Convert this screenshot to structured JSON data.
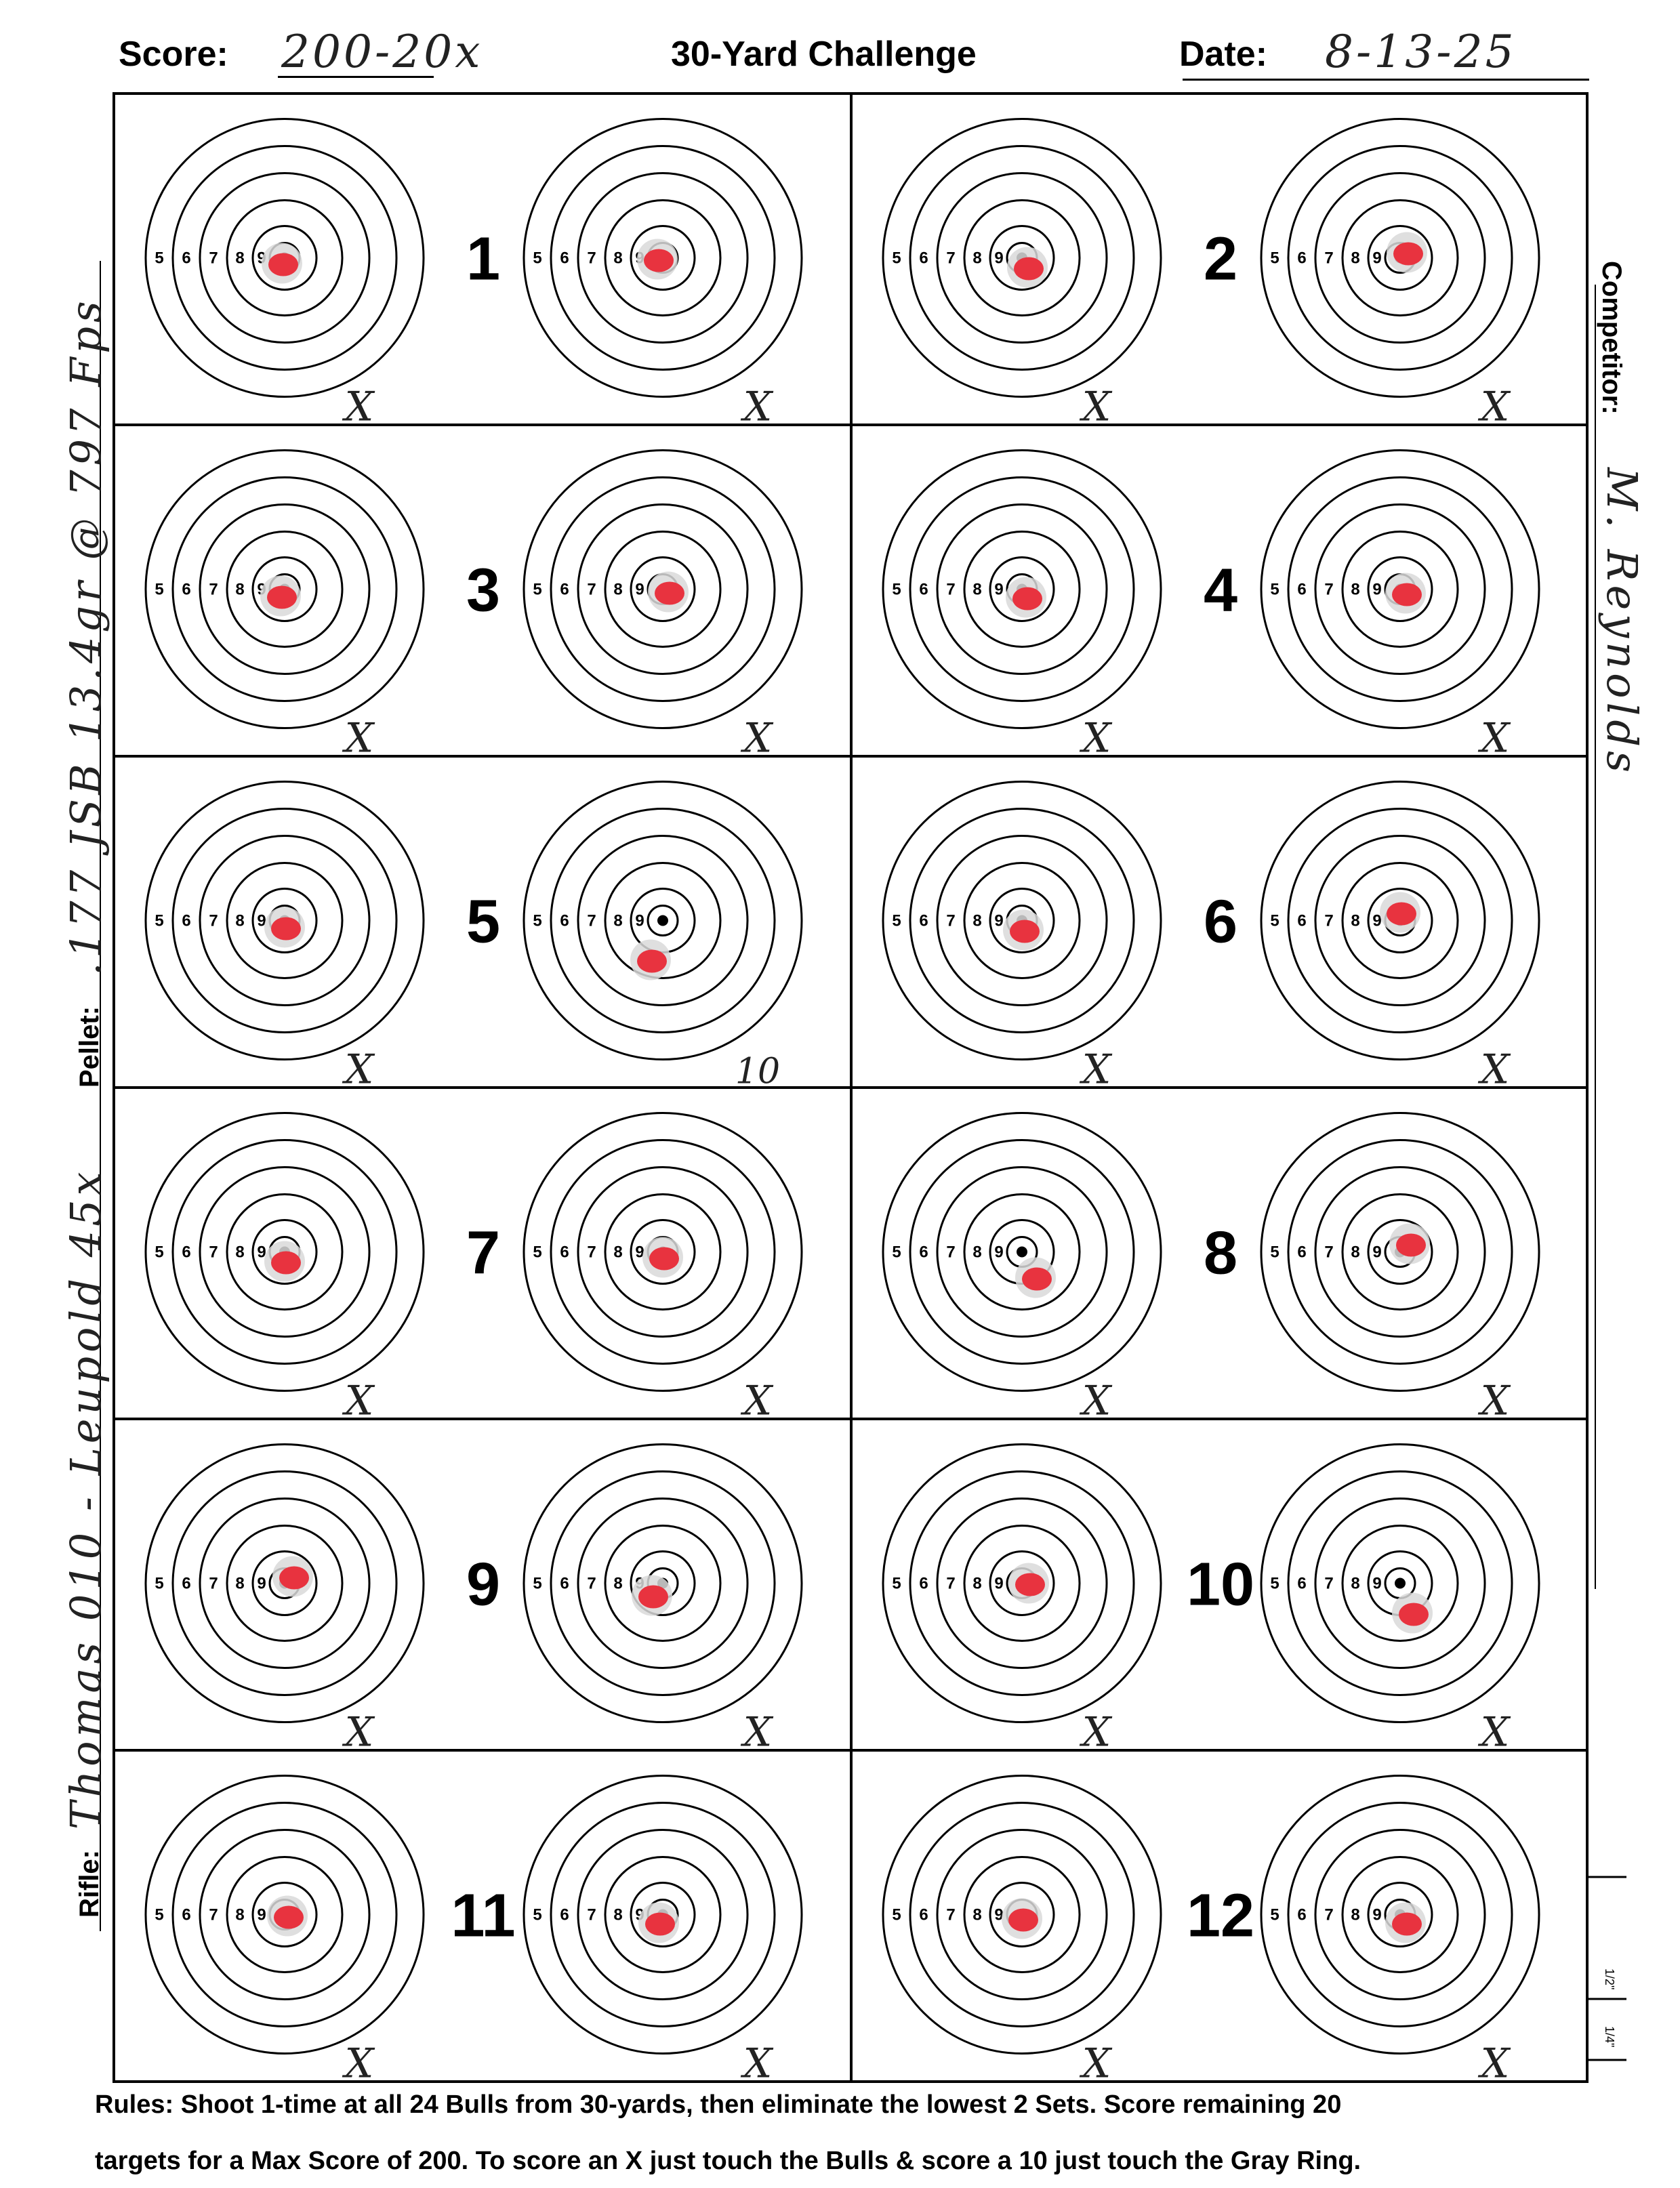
{
  "header": {
    "score_label": "Score:",
    "score_value": "200-20x",
    "title": "30-Yard Challenge",
    "date_label": "Date:",
    "date_value": "8-13-25"
  },
  "side_labels": {
    "competitor_label": "Competitor:",
    "competitor_value": "M. Reynolds",
    "pellet_label": "Pellet:",
    "pellet_value": ".177 JSB 13.4gr @ 797 Fps",
    "rifle_label": "Rifle:",
    "rifle_value": "Thomas 010 - Leupold 45x"
  },
  "ring_numbers": [
    "5",
    "6",
    "7",
    "8",
    "9"
  ],
  "sets": [
    {
      "number": "1",
      "marks": [
        "X",
        "X"
      ]
    },
    {
      "number": "2",
      "marks": [
        "X",
        "X"
      ]
    },
    {
      "number": "3",
      "marks": [
        "X",
        "X"
      ]
    },
    {
      "number": "4",
      "marks": [
        "X",
        "X"
      ]
    },
    {
      "number": "5",
      "marks": [
        "X",
        "10"
      ]
    },
    {
      "number": "6",
      "marks": [
        "X",
        "X"
      ]
    },
    {
      "number": "7",
      "marks": [
        "X",
        "X"
      ]
    },
    {
      "number": "8",
      "marks": [
        "X",
        "X"
      ]
    },
    {
      "number": "9",
      "marks": [
        "X",
        "X"
      ]
    },
    {
      "number": "10",
      "marks": [
        "X",
        "X"
      ]
    },
    {
      "number": "11",
      "marks": [
        "X",
        "X"
      ]
    },
    {
      "number": "12",
      "marks": [
        "X",
        "X"
      ]
    }
  ],
  "scale_labels": [
    "1/2\"",
    "1/4\""
  ],
  "rules": {
    "line1": "Rules: Shoot 1-time at all 24 Bulls from 30-yards, then eliminate the lowest 2 Sets. Score remaining 20",
    "line2": "targets for a Max Score of 200. To score an X just touch the Bulls & score a 10 just touch the Gray Ring."
  },
  "colors": {
    "ink": "#000000",
    "pellet_hole": "#e8333f",
    "torn_paper": "#d9d9d9"
  }
}
